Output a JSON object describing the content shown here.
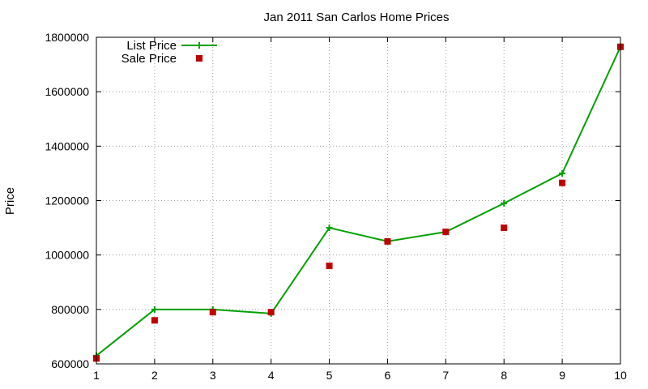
{
  "chart_data": {
    "type": "line",
    "title": "Jan 2011 San Carlos Home Prices",
    "xlabel": "",
    "ylabel": "Price",
    "x": [
      1,
      2,
      3,
      4,
      5,
      6,
      7,
      8,
      9,
      10
    ],
    "xlim": [
      1,
      10
    ],
    "ylim": [
      600000,
      1800000
    ],
    "xticks": [
      1,
      2,
      3,
      4,
      5,
      6,
      7,
      8,
      9,
      10
    ],
    "yticks": [
      600000,
      800000,
      1000000,
      1200000,
      1400000,
      1600000,
      1800000
    ],
    "grid": true,
    "legend_position": "top-left",
    "series": [
      {
        "name": "List Price",
        "style": "lines+points",
        "marker": "plus",
        "color": "#00a000",
        "values": [
          630000,
          800000,
          800000,
          785000,
          1100000,
          1050000,
          1085000,
          1190000,
          1300000,
          1765000
        ]
      },
      {
        "name": "Sale Price",
        "style": "points",
        "marker": "square",
        "color": "#c00000",
        "values": [
          620000,
          760000,
          790000,
          790000,
          960000,
          1050000,
          1085000,
          1100000,
          1265000,
          1765000
        ]
      }
    ]
  }
}
